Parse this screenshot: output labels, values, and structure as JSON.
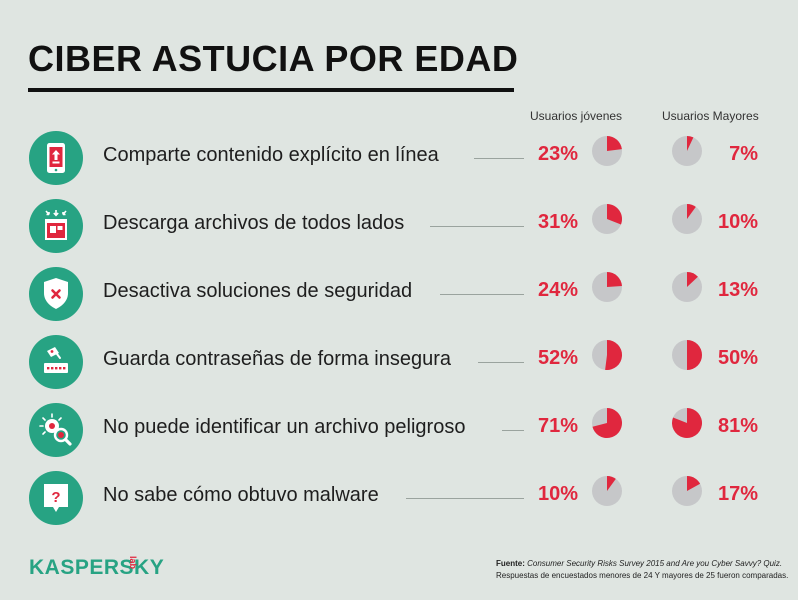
{
  "title": "CIBER ASTUCIA POR EDAD",
  "columns": {
    "young": "Usuarios jóvenes",
    "older": "Usuarios Mayores"
  },
  "colors": {
    "teal": "#27a383",
    "red": "#e0273e",
    "pie_bg": "#c6c7c9",
    "background": "#dfe5e1"
  },
  "rows": [
    {
      "label": "Comparte contenido explícito en línea",
      "icon": "phone-share-icon",
      "young": "23%",
      "older": "7%",
      "young_value": 23,
      "older_value": 7
    },
    {
      "label": "Descarga archivos de todos lados",
      "icon": "download-icon",
      "young": "31%",
      "older": "10%",
      "young_value": 31,
      "older_value": 10
    },
    {
      "label": "Desactiva soluciones de seguridad",
      "icon": "shield-x-icon",
      "young": "24%",
      "older": "13%",
      "young_value": 24,
      "older_value": 13
    },
    {
      "label": "Guarda contraseñas de forma insegura",
      "icon": "password-icon",
      "young": "52%",
      "older": "50%",
      "young_value": 52,
      "older_value": 50
    },
    {
      "label": "No puede identificar un archivo peligroso",
      "icon": "bug-search-icon",
      "young": "71%",
      "older": "81%",
      "young_value": 71,
      "older_value": 81
    },
    {
      "label": "No sabe cómo obtuvo malware",
      "icon": "question-bubble-icon",
      "young": "10%",
      "older": "17%",
      "young_value": 10,
      "older_value": 17
    }
  ],
  "brand": {
    "name": "KASPERSKY",
    "suffix": "lab"
  },
  "footnote": {
    "label": "Fuente:",
    "line1": "Consumer Security Risks Survey 2015 and Are you Cyber Savvy? Quiz.",
    "line2": "Respuestas de encuestados menores de 24 Y mayores de 25 fueron comparadas."
  }
}
